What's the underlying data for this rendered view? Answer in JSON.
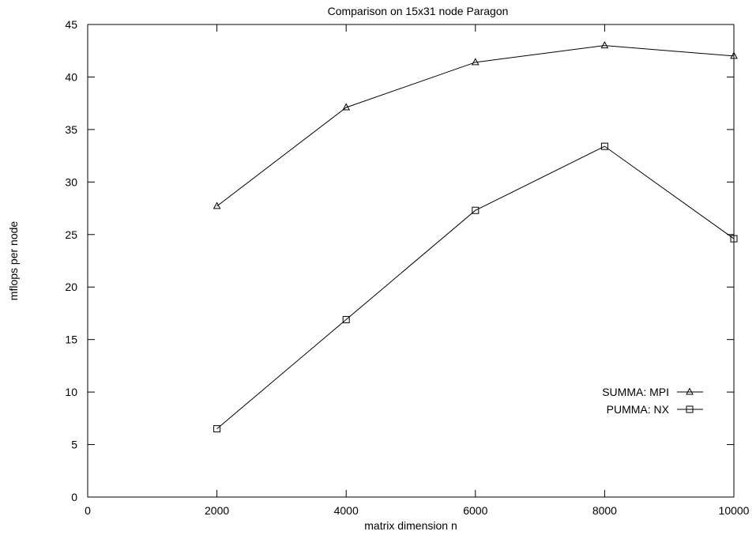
{
  "chart_data": {
    "type": "line",
    "title": "Comparison on 15x31 node Paragon",
    "xlabel": "matrix dimension n",
    "ylabel": "mflops per node",
    "xlim": [
      0,
      10000
    ],
    "ylim": [
      0,
      45
    ],
    "xticks": [
      0,
      2000,
      4000,
      6000,
      8000,
      10000
    ],
    "yticks": [
      0,
      5,
      10,
      15,
      20,
      25,
      30,
      35,
      40,
      45
    ],
    "grid": false,
    "legend_position": "lower-right",
    "series": [
      {
        "name": "SUMMA: MPI",
        "marker": "triangle",
        "color": "#000000",
        "x": [
          2000,
          4000,
          6000,
          8000,
          10000
        ],
        "y": [
          27.7,
          37.1,
          41.4,
          43.0,
          42.0
        ]
      },
      {
        "name": "PUMMA:  NX",
        "marker": "square",
        "color": "#000000",
        "x": [
          2000,
          4000,
          6000,
          8000,
          10000
        ],
        "y": [
          6.5,
          16.9,
          27.3,
          33.4,
          24.6
        ]
      }
    ]
  }
}
